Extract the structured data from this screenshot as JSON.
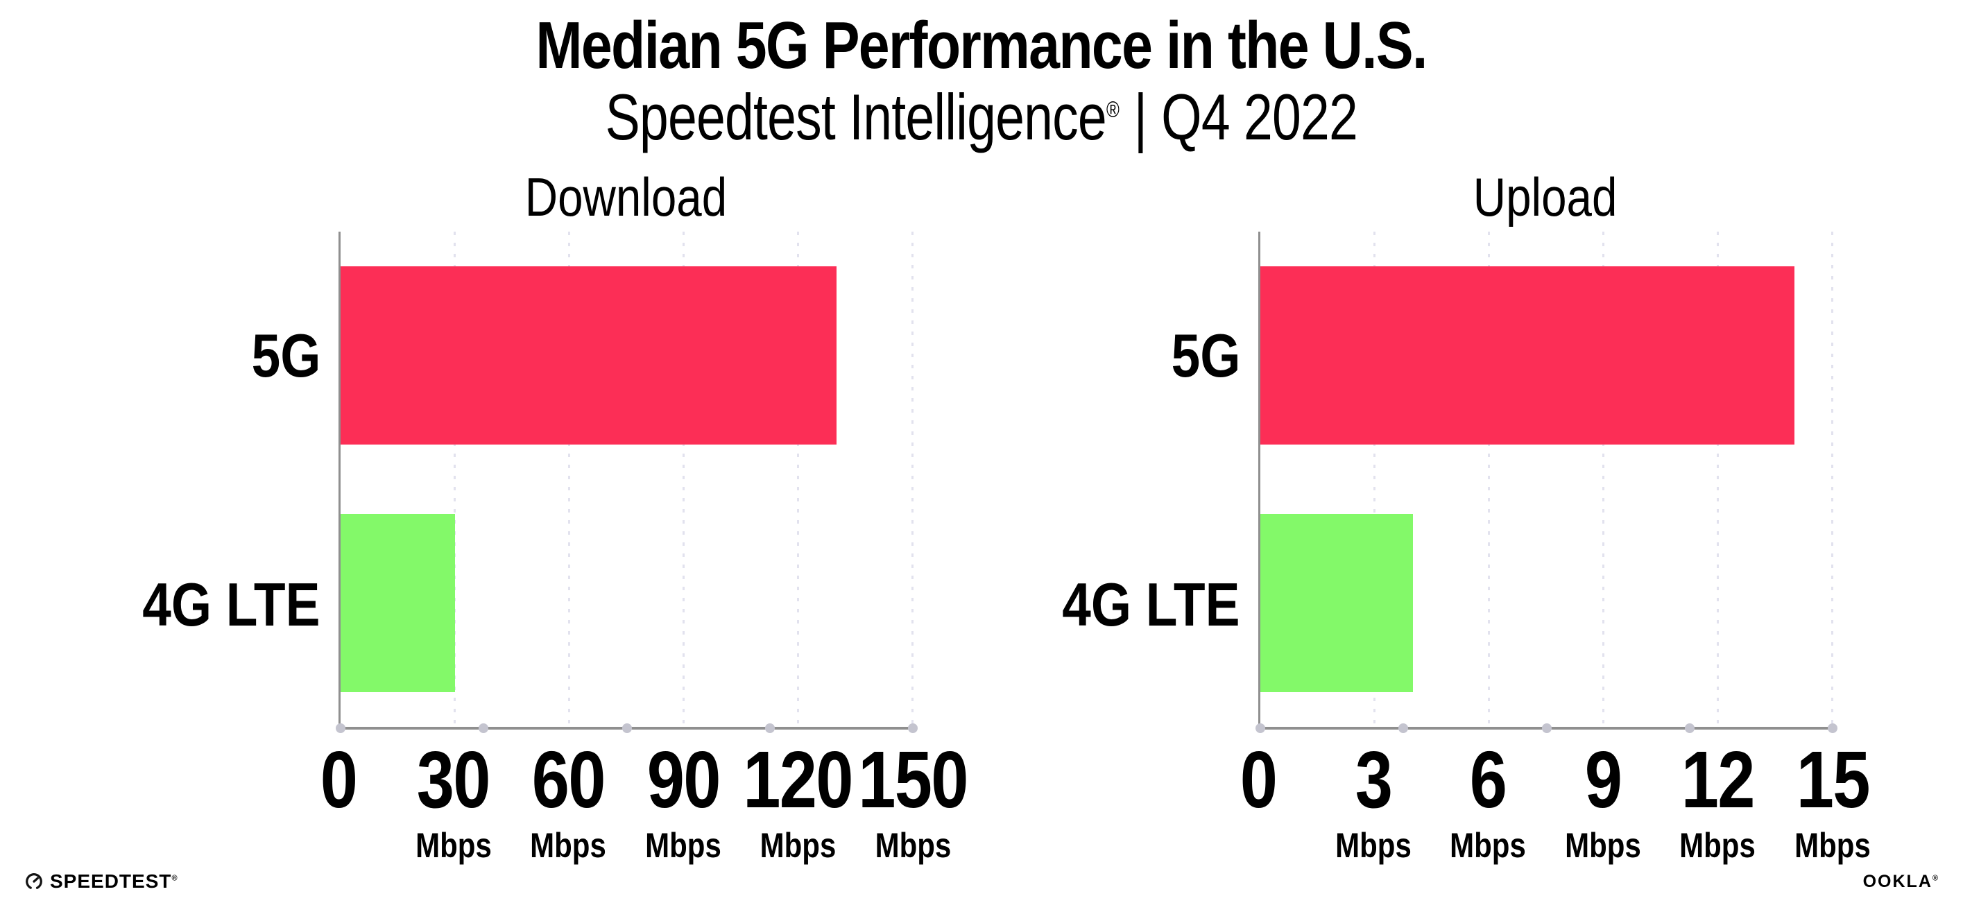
{
  "header": {
    "title": "Median 5G Performance in the U.S.",
    "subtitle_product": "Speedtest Intelligence",
    "subtitle_trademark": "®",
    "subtitle_separator": "|",
    "subtitle_period": "Q4 2022"
  },
  "chart_data": [
    {
      "type": "bar",
      "orientation": "horizontal",
      "title": "Download",
      "categories": [
        "5G",
        "4G LTE"
      ],
      "values": [
        130,
        30
      ],
      "unit": "Mbps",
      "xlim": [
        0,
        150
      ],
      "xticks": [
        0,
        30,
        60,
        90,
        120,
        150
      ],
      "bar_colors": [
        "#fc2e56",
        "#83f969"
      ],
      "grid": "dotted-vertical",
      "legend": "none"
    },
    {
      "type": "bar",
      "orientation": "horizontal",
      "title": "Upload",
      "categories": [
        "5G",
        "4G LTE"
      ],
      "values": [
        14,
        4
      ],
      "unit": "Mbps",
      "xlim": [
        0,
        15
      ],
      "xticks": [
        0,
        3,
        6,
        9,
        12,
        15
      ],
      "bar_colors": [
        "#fc2e56",
        "#83f969"
      ],
      "grid": "dotted-vertical",
      "legend": "none"
    }
  ],
  "footer": {
    "speedtest_label": "SPEEDTEST",
    "speedtest_trademark": "®",
    "ookla_label": "OOKLA",
    "ookla_trademark": "®"
  },
  "colors": {
    "bar_5g": "#fc2e56",
    "bar_4g_lte": "#83f969",
    "axis_line": "#8f8f8f",
    "gridline": "#e2e2ee",
    "axis_dot": "#c4c4cf",
    "text": "#000000",
    "background": "#ffffff"
  }
}
